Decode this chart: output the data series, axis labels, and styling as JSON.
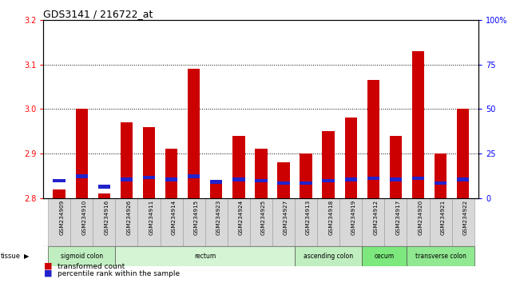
{
  "title": "GDS3141 / 216722_at",
  "samples": [
    "GSM234909",
    "GSM234910",
    "GSM234916",
    "GSM234926",
    "GSM234911",
    "GSM234914",
    "GSM234915",
    "GSM234923",
    "GSM234924",
    "GSM234925",
    "GSM234927",
    "GSM234913",
    "GSM234918",
    "GSM234919",
    "GSM234912",
    "GSM234917",
    "GSM234920",
    "GSM234921",
    "GSM234922"
  ],
  "red_values": [
    2.82,
    3.0,
    2.81,
    2.97,
    2.96,
    2.91,
    3.09,
    2.84,
    2.94,
    2.91,
    2.88,
    2.9,
    2.95,
    2.98,
    3.065,
    2.94,
    3.13,
    2.9,
    3.0
  ],
  "blue_positions": [
    2.835,
    2.845,
    2.822,
    2.838,
    2.842,
    2.838,
    2.845,
    2.832,
    2.838,
    2.835,
    2.83,
    2.83,
    2.835,
    2.838,
    2.84,
    2.838,
    2.84,
    2.83,
    2.838
  ],
  "ylim_left": [
    2.8,
    3.2
  ],
  "ylim_right": [
    0,
    100
  ],
  "yticks_left": [
    2.8,
    2.9,
    3.0,
    3.1,
    3.2
  ],
  "yticks_right": [
    0,
    25,
    50,
    75,
    100
  ],
  "ytick_labels_right": [
    "0",
    "25",
    "50",
    "75",
    "100%"
  ],
  "tissue_groups": [
    {
      "label": "sigmoid colon",
      "start": 0,
      "end": 3
    },
    {
      "label": "rectum",
      "start": 3,
      "end": 11
    },
    {
      "label": "ascending colon",
      "start": 11,
      "end": 14
    },
    {
      "label": "cecum",
      "start": 14,
      "end": 16
    },
    {
      "label": "transverse colon",
      "start": 16,
      "end": 19
    }
  ],
  "tissue_colors": [
    "#c0eec0",
    "#d4f4d4",
    "#c0eec0",
    "#7de87d",
    "#90e890"
  ],
  "bar_color_red": "#cc0000",
  "bar_color_blue": "#2222cc",
  "bar_width": 0.55,
  "legend_red": "transformed count",
  "legend_blue": "percentile rank within the sample"
}
